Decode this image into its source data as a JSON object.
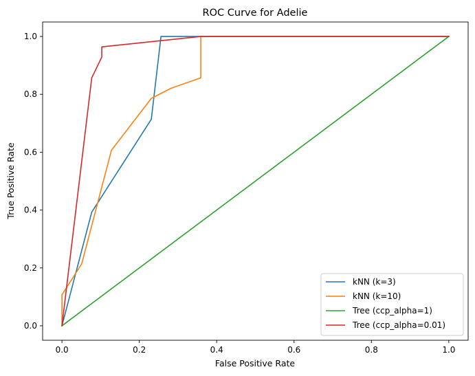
{
  "chart_data": {
    "type": "line",
    "title": "ROC Curve for Adelie",
    "xlabel": "False Positive Rate",
    "ylabel": "True Positive Rate",
    "xlim": [
      -0.05,
      1.05
    ],
    "ylim": [
      -0.05,
      1.05
    ],
    "xticks": [
      0.0,
      0.2,
      0.4,
      0.6,
      0.8,
      1.0
    ],
    "yticks": [
      0.0,
      0.2,
      0.4,
      0.6,
      0.8,
      1.0
    ],
    "xtick_labels": [
      "0.0",
      "0.2",
      "0.4",
      "0.6",
      "0.8",
      "1.0"
    ],
    "ytick_labels": [
      "0.0",
      "0.2",
      "0.4",
      "0.6",
      "0.8",
      "1.0"
    ],
    "grid": false,
    "legend_position": "bottom-right",
    "series": [
      {
        "name": "kNN (k=3)",
        "color": "#1f77b4",
        "x": [
          0.0,
          0.077,
          0.231,
          0.256,
          1.0
        ],
        "y": [
          0.0,
          0.393,
          0.714,
          1.0,
          1.0
        ]
      },
      {
        "name": "kNN (k=10)",
        "color": "#ff7f0e",
        "x": [
          0.0,
          0.0,
          0.051,
          0.128,
          0.231,
          0.282,
          0.359,
          0.359,
          1.0
        ],
        "y": [
          0.0,
          0.107,
          0.214,
          0.607,
          0.786,
          0.821,
          0.857,
          1.0,
          1.0
        ]
      },
      {
        "name": "Tree (ccp_alpha=1)",
        "color": "#2ca02c",
        "x": [
          0.0,
          1.0
        ],
        "y": [
          0.0,
          1.0
        ]
      },
      {
        "name": "Tree (ccp_alpha=0.01)",
        "color": "#d62728",
        "x": [
          0.0,
          0.077,
          0.103,
          0.103,
          0.359,
          1.0
        ],
        "y": [
          0.0,
          0.857,
          0.929,
          0.964,
          1.0,
          1.0
        ]
      }
    ]
  }
}
